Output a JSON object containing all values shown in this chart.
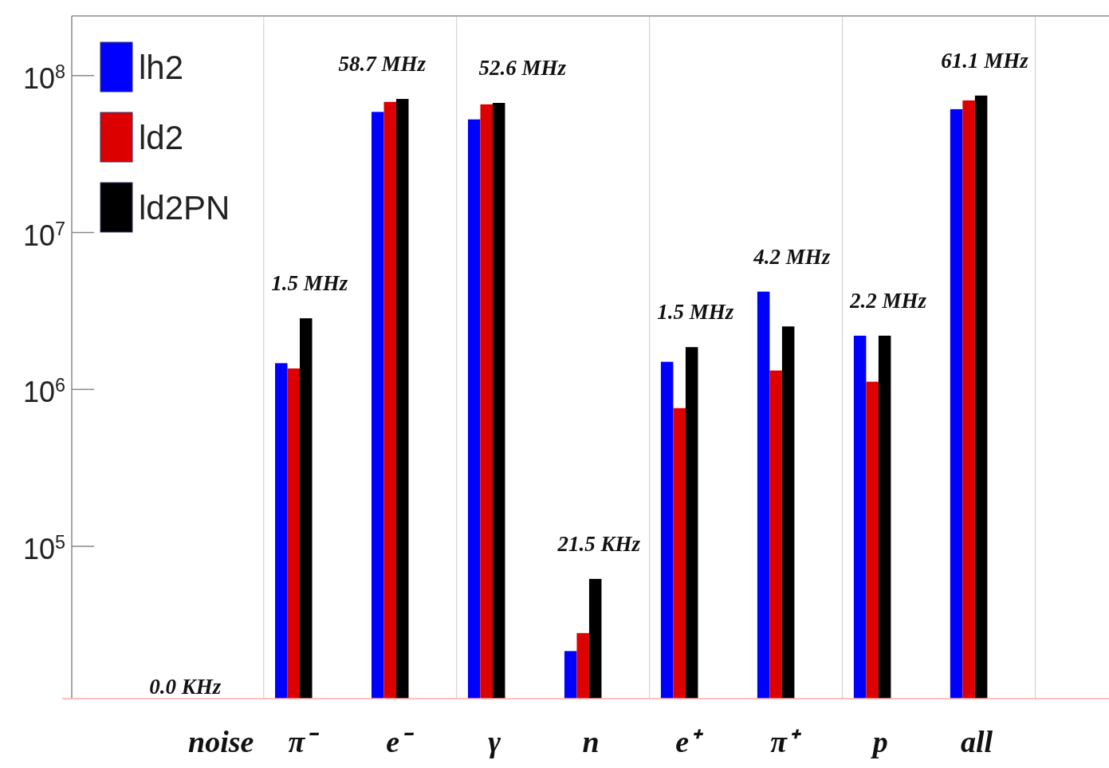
{
  "chart_data": {
    "type": "bar",
    "categories": [
      "noise",
      "π⁻",
      "e⁻",
      "γ",
      "n",
      "e⁺",
      "π⁺",
      "p",
      "all"
    ],
    "series": [
      {
        "name": "lh2",
        "color": "#0000ff",
        "values": [
          null,
          1470000,
          58700000,
          52600000,
          21500,
          1500000,
          4200000,
          2200000,
          61100000
        ]
      },
      {
        "name": "ld2",
        "color": "#dd0000",
        "values": [
          null,
          1360000,
          68000000,
          65600000,
          28000,
          760000,
          1320000,
          1120000,
          69500000
        ]
      },
      {
        "name": "ld2PN",
        "color": "#000000",
        "values": [
          null,
          2840000,
          71000000,
          67000000,
          62000,
          1860000,
          2520000,
          2200000,
          74600000
        ]
      }
    ],
    "log": true,
    "ylim": [
      10700,
      240000000
    ],
    "yticks": [
      {
        "value": 100000,
        "label": "10$^{5}$"
      },
      {
        "value": 1000000,
        "label": "10$^{6}$"
      },
      {
        "value": 10000000,
        "label": "10$^{7}$"
      },
      {
        "value": 100000000,
        "label": "10$^{8}$"
      }
    ],
    "grid": "x",
    "legend": "top left",
    "annotations": [
      "0.0 KHz",
      "1.5 MHz",
      "58.7 MHz",
      "52.6 MHz",
      "21.5 KHz",
      "1.5 MHz",
      "4.2 MHz",
      "2.2 MHz",
      "61.1 MHz"
    ]
  }
}
